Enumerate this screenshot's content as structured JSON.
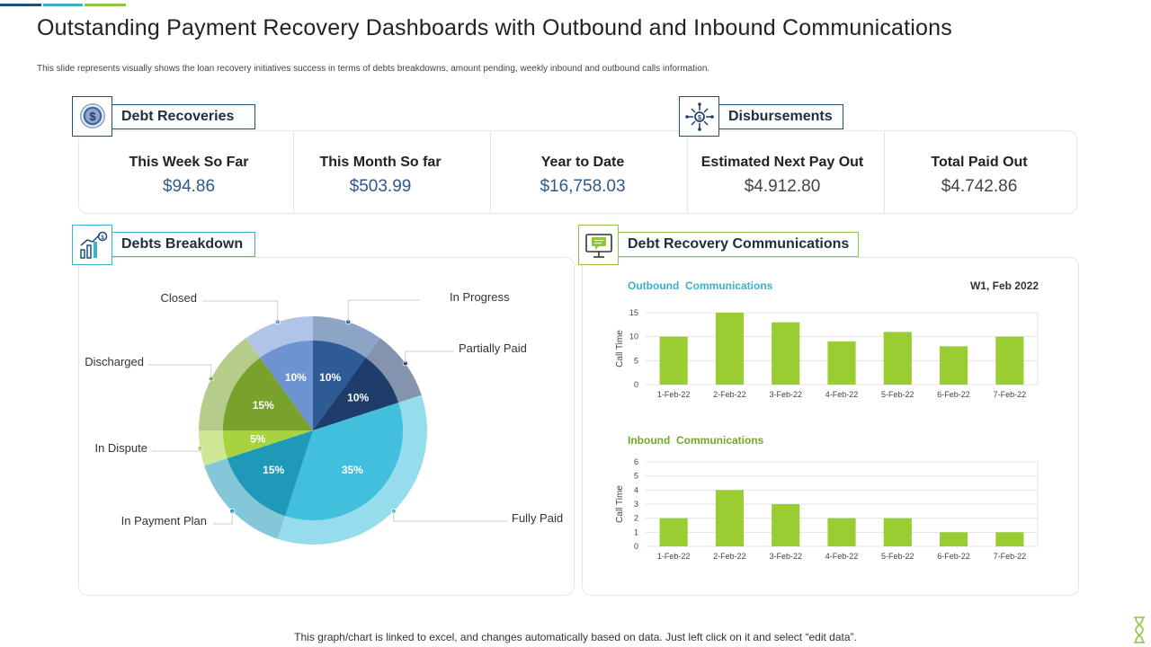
{
  "title": "Outstanding Payment Recovery Dashboards with Outbound and Inbound Communications",
  "subtitle": "This slide represents visually shows the loan recovery initiatives success in terms of debts breakdowns, amount pending, weekly inbound and outbound calls information.",
  "footer": "This graph/chart is linked to excel,  and changes automatically based on data. Just left click on it and select “edit data”.",
  "colors": {
    "accent_blue": "#1f4e79",
    "accent_teal": "#3bb0c9",
    "accent_green": "#8dc63f",
    "value_blue": "#2e5a8a",
    "value_gray": "#444444"
  },
  "sections": {
    "debt_recoveries": {
      "label": "Debt Recoveries",
      "icon": "dollar-coin-icon"
    },
    "disbursements": {
      "label": "Disbursements",
      "icon": "money-distribution-icon"
    },
    "debts_breakdown": {
      "label": "Debts Breakdown",
      "icon": "bar-growth-icon"
    },
    "communications": {
      "label": "Debt Recovery Communications",
      "icon": "monitor-chat-icon"
    }
  },
  "stats": [
    {
      "label": "This Week So Far",
      "value": "$94.86"
    },
    {
      "label": "This Month  So far",
      "value": "$503.99"
    },
    {
      "label": "Year to Date",
      "value": "$16,758.03"
    },
    {
      "label": "Estimated Next Pay Out",
      "value": "$4.912.80"
    },
    {
      "label": "Total Paid Out",
      "value": "$4.742.86"
    }
  ],
  "chart_data": [
    {
      "type": "pie",
      "title": "",
      "slices": [
        {
          "name": "In Progress",
          "value": 10,
          "label": "10%",
          "color": "#2e5a96"
        },
        {
          "name": "Partially Paid",
          "value": 10,
          "label": "10%",
          "color": "#1f3d6b"
        },
        {
          "name": "Fully Paid",
          "value": 35,
          "label": "35%",
          "color": "#41bfdc"
        },
        {
          "name": "In Payment Plan",
          "value": 15,
          "label": "15%",
          "color": "#1e9ab8"
        },
        {
          "name": "In Dispute",
          "value": 5,
          "label": "5%",
          "color": "#a6d33e"
        },
        {
          "name": "Discharged",
          "value": 15,
          "label": "15%",
          "color": "#78a22c"
        },
        {
          "name": "Closed",
          "value": 10,
          "label": "10%",
          "color": "#6d93d3"
        }
      ]
    },
    {
      "type": "bar",
      "title": "Outbound  Communications",
      "date_label": "W1, Feb 2022",
      "ylabel": "Call Time",
      "ylim": [
        0,
        15
      ],
      "yticks": [
        0,
        5,
        10,
        15
      ],
      "categories": [
        "1-Feb-22",
        "2-Feb-22",
        "3-Feb-22",
        "4-Feb-22",
        "5-Feb-22",
        "6-Feb-22",
        "7-Feb-22"
      ],
      "values": [
        10,
        15,
        13,
        9,
        11,
        8,
        10
      ],
      "color": "#9acd32"
    },
    {
      "type": "bar",
      "title": "Inbound  Communications",
      "ylabel": "Call Time",
      "ylim": [
        0,
        6
      ],
      "yticks": [
        0,
        1,
        2,
        3,
        4,
        5,
        6
      ],
      "categories": [
        "1-Feb-22",
        "2-Feb-22",
        "3-Feb-22",
        "4-Feb-22",
        "5-Feb-22",
        "6-Feb-22",
        "7-Feb-22"
      ],
      "values": [
        2,
        4,
        3,
        2,
        2,
        1,
        1
      ],
      "color": "#9acd32"
    }
  ]
}
